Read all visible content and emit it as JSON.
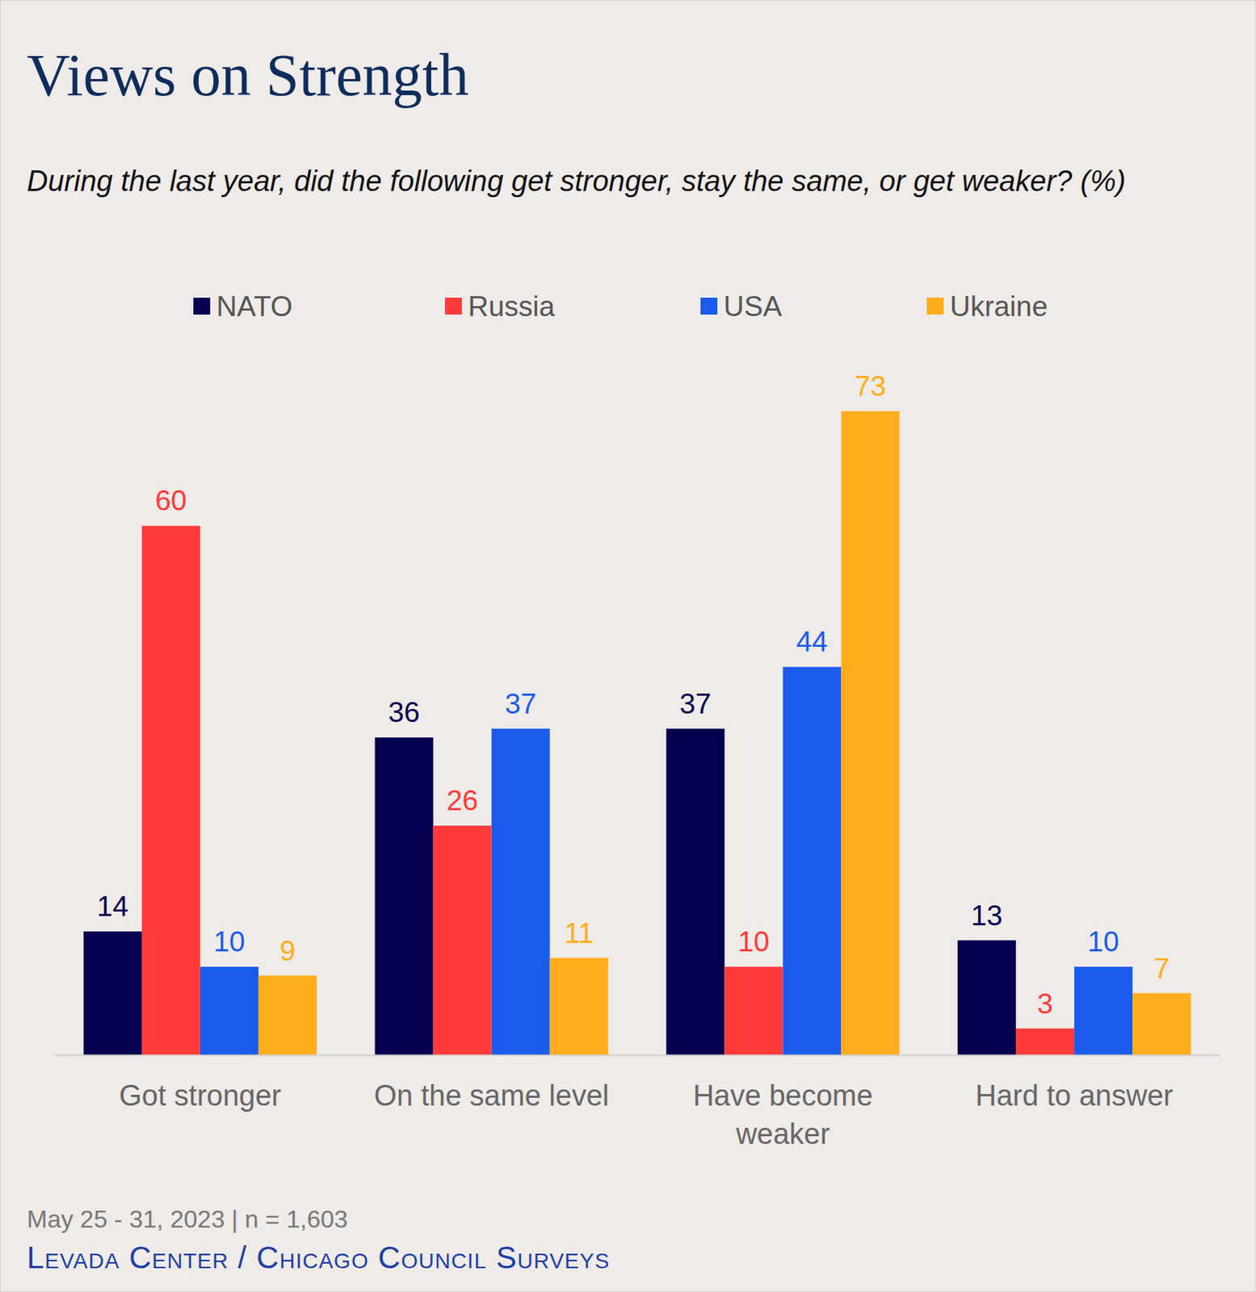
{
  "chart_data": {
    "type": "bar",
    "title": "Views on Strength",
    "subtitle": "During the last year, did the following get stronger, stay the same, or get weaker? (%)",
    "categories": [
      "Got stronger",
      "On the same level",
      "Have become weaker",
      "Hard to answer"
    ],
    "series": [
      {
        "name": "NATO",
        "color": "#05004f",
        "values": [
          14,
          36,
          37,
          13
        ]
      },
      {
        "name": "Russia",
        "color": "#ff3a38",
        "values": [
          60,
          26,
          10,
          3
        ]
      },
      {
        "name": "USA",
        "color": "#1a5bec",
        "values": [
          10,
          37,
          44,
          10
        ]
      },
      {
        "name": "Ukraine",
        "color": "#fdad1c",
        "values": [
          9,
          11,
          73,
          7
        ]
      }
    ],
    "ylim": [
      0,
      73
    ],
    "grid": false,
    "legend": "top",
    "data_labels": true,
    "tick_labels": "x",
    "annotations": [
      "May 25 - 31, 2023 | n = 1,603",
      "Levada Center / Chicago Council Surveys"
    ]
  }
}
